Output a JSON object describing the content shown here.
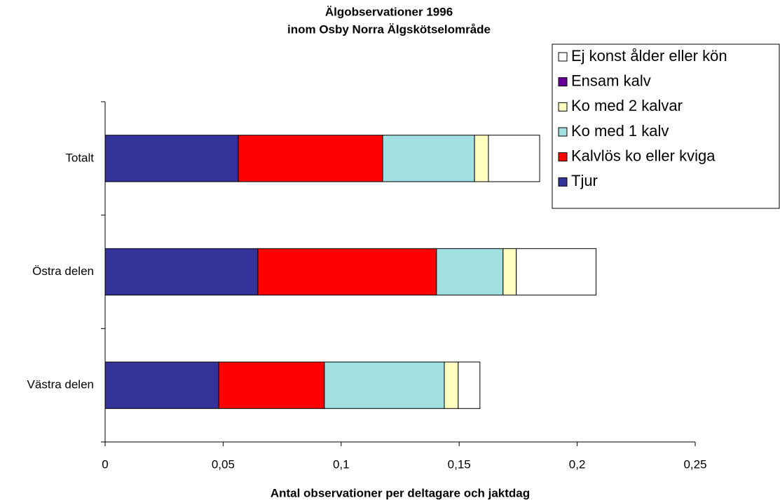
{
  "chart_data": {
    "type": "stacked-barh",
    "title": "Älgobservationer 1996",
    "subtitle": "inom Osby Norra Älgskötselområde",
    "x_label": "Antal observationer per deltagare och jaktdag",
    "categories": [
      "Totalt",
      "Östra delen",
      "Västra delen"
    ],
    "series": [
      {
        "name": "Tjur",
        "color": "#333399",
        "values": [
          0.0564,
          0.0647,
          0.0481
        ]
      },
      {
        "name": "Kalvlös ko eller kviga",
        "color": "#ff0000",
        "values": [
          0.0612,
          0.0757,
          0.0448
        ]
      },
      {
        "name": "Ko med 1 kalv",
        "color": "#a0e0e0",
        "values": [
          0.0389,
          0.0282,
          0.0508
        ]
      },
      {
        "name": "Ko med 2 kalvar",
        "color": "#ffffc0",
        "values": [
          0.0059,
          0.0056,
          0.0059
        ]
      },
      {
        "name": "Ensam kalv",
        "color": "#660099",
        "values": [
          0,
          0,
          0
        ]
      },
      {
        "name": "Ej konst ålder eller kön",
        "color": "#ffffff",
        "values": [
          0.0217,
          0.0338,
          0.0092
        ]
      }
    ],
    "xlim": [
      0,
      0.25
    ],
    "xticks": [
      0,
      {
        "value": 0.05,
        "label": "0,05"
      },
      {
        "value": 0.1,
        "label": "0,1"
      },
      {
        "value": 0.15,
        "label": "0,15"
      },
      {
        "value": 0.2,
        "label": "0,2"
      },
      {
        "value": 0.25,
        "label": "0,25"
      }
    ],
    "legend": "top-right"
  }
}
